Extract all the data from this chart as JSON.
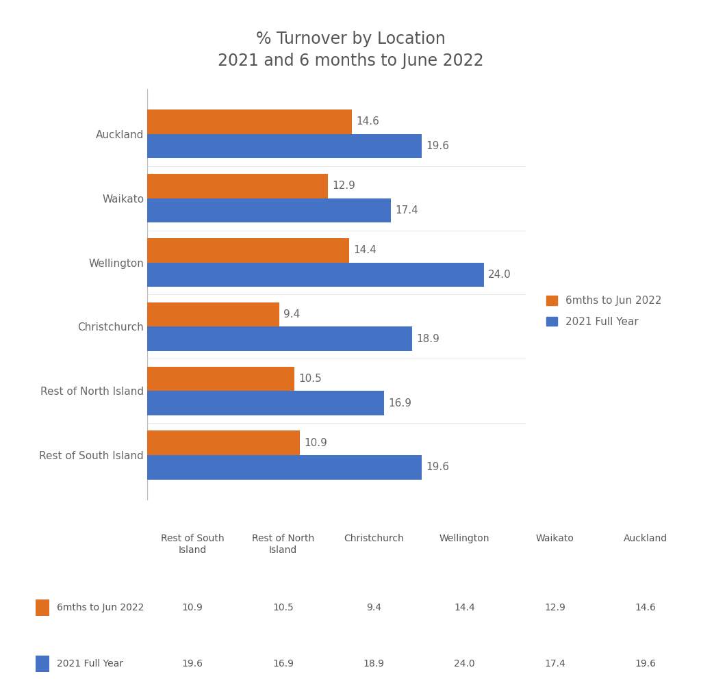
{
  "title": "% Turnover by Location\n2021 and 6 months to June 2022",
  "locations": [
    "Auckland",
    "Waikato",
    "Wellington",
    "Christchurch",
    "Rest of North Island",
    "Rest of South Island"
  ],
  "values_2022": [
    14.6,
    12.9,
    14.4,
    9.4,
    10.5,
    10.9
  ],
  "values_2021": [
    19.6,
    17.4,
    24.0,
    18.9,
    16.9,
    19.6
  ],
  "color_2022": "#E07020",
  "color_2021": "#4472C4",
  "legend_label_2022": "6mths to Jun 2022",
  "legend_label_2021": "2021 Full Year",
  "table_col_labels": [
    "Rest of South\nIsland",
    "Rest of North\nIsland",
    "Christchurch",
    "Wellington",
    "Waikato",
    "Auckland"
  ],
  "table_row_labels": [
    "6mths to Jun 2022",
    "2021 Full Year"
  ],
  "table_values_2022": [
    10.9,
    10.5,
    9.4,
    14.4,
    12.9,
    14.6
  ],
  "table_values_2021": [
    19.6,
    16.9,
    18.9,
    24.0,
    17.4,
    19.6
  ],
  "bg_color": "#FFFFFF",
  "bar_height": 0.38,
  "xlim": [
    0,
    27
  ],
  "title_fontsize": 17,
  "label_fontsize": 11,
  "tick_fontsize": 11,
  "value_fontsize": 11,
  "table_fontsize": 10
}
